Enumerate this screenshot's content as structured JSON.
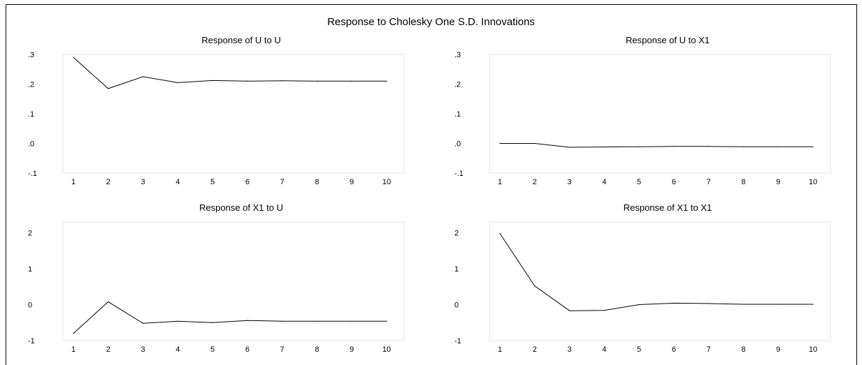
{
  "figure": {
    "title": "Response to Cholesky One S.D. Innovations"
  },
  "chart_data": [
    {
      "type": "line",
      "title": "Response of U to U",
      "x": [
        1,
        2,
        3,
        4,
        5,
        6,
        7,
        8,
        9,
        10
      ],
      "series": [
        {
          "values": [
            0.29,
            0.185,
            0.225,
            0.205,
            0.212,
            0.21,
            0.211,
            0.21,
            0.21,
            0.21
          ]
        }
      ],
      "ylim": [
        -0.1,
        0.3
      ],
      "yticks": [
        ".3",
        ".2",
        ".1",
        ".0",
        "-.1"
      ],
      "ytick_values": [
        0.3,
        0.2,
        0.1,
        0.0,
        -0.1
      ],
      "xticks": [
        "1",
        "2",
        "3",
        "4",
        "5",
        "6",
        "7",
        "8",
        "9",
        "10"
      ],
      "grid": false
    },
    {
      "type": "line",
      "title": "Response of U to X1",
      "x": [
        1,
        2,
        3,
        4,
        5,
        6,
        7,
        8,
        9,
        10
      ],
      "series": [
        {
          "values": [
            0.0,
            0.0,
            -0.013,
            -0.012,
            -0.011,
            -0.01,
            -0.01,
            -0.011,
            -0.011,
            -0.011
          ]
        }
      ],
      "ylim": [
        -0.1,
        0.3
      ],
      "yticks": [
        ".3",
        ".2",
        ".1",
        ".0",
        "-.1"
      ],
      "ytick_values": [
        0.3,
        0.2,
        0.1,
        0.0,
        -0.1
      ],
      "xticks": [
        "1",
        "2",
        "3",
        "4",
        "5",
        "6",
        "7",
        "8",
        "9",
        "10"
      ],
      "grid": false
    },
    {
      "type": "line",
      "title": "Response of X1 to U",
      "x": [
        1,
        2,
        3,
        4,
        5,
        6,
        7,
        8,
        9,
        10
      ],
      "series": [
        {
          "values": [
            -0.8,
            0.08,
            -0.52,
            -0.46,
            -0.5,
            -0.44,
            -0.46,
            -0.46,
            -0.46,
            -0.46
          ]
        }
      ],
      "ylim": [
        -1,
        2.3
      ],
      "yticks": [
        "2",
        "1",
        "0",
        "-1"
      ],
      "ytick_values": [
        2,
        1,
        0,
        -1
      ],
      "xticks": [
        "1",
        "2",
        "3",
        "4",
        "5",
        "6",
        "7",
        "8",
        "9",
        "10"
      ],
      "grid": false
    },
    {
      "type": "line",
      "title": "Response of X1 to X1",
      "x": [
        1,
        2,
        3,
        4,
        5,
        6,
        7,
        8,
        9,
        10
      ],
      "series": [
        {
          "values": [
            1.98,
            0.52,
            -0.17,
            -0.16,
            0.0,
            0.04,
            0.03,
            0.01,
            0.01,
            0.01
          ]
        }
      ],
      "ylim": [
        -1,
        2.3
      ],
      "yticks": [
        "2",
        "1",
        "0",
        "-1"
      ],
      "ytick_values": [
        2,
        1,
        0,
        -1
      ],
      "xticks": [
        "1",
        "2",
        "3",
        "4",
        "5",
        "6",
        "7",
        "8",
        "9",
        "10"
      ],
      "grid": false
    }
  ]
}
